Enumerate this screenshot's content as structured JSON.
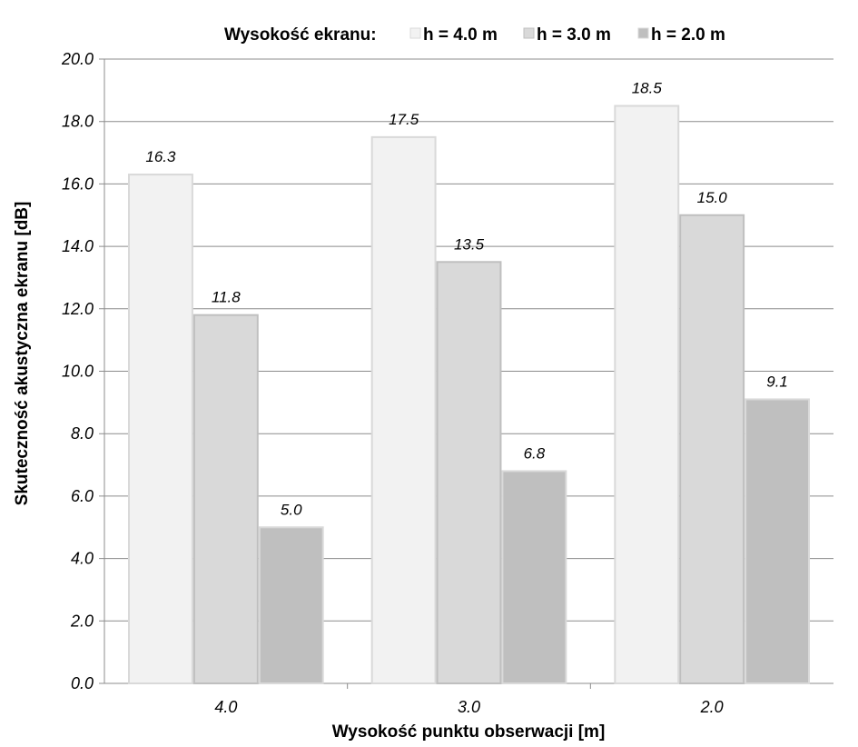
{
  "chart_data": {
    "type": "bar",
    "categories": [
      "4.0",
      "3.0",
      "2.0"
    ],
    "series": [
      {
        "name": "h = 4.0 m",
        "values": [
          16.3,
          17.5,
          18.5
        ],
        "fill": "#f2f2f2",
        "stroke": "#d9d9d9"
      },
      {
        "name": "h = 3.0 m",
        "values": [
          11.8,
          13.5,
          15.0
        ],
        "fill": "#d9d9d9",
        "stroke": "#bfbfbf"
      },
      {
        "name": "h = 2.0 m",
        "values": [
          5.0,
          6.8,
          9.1
        ],
        "fill": "#bfbfbf",
        "stroke": "#d9d9d9"
      }
    ],
    "data_labels": [
      [
        "16.3",
        "17.5",
        "18.5"
      ],
      [
        "11.8",
        "13.5",
        "15.0"
      ],
      [
        "5.0",
        "6.8",
        "9.1"
      ]
    ],
    "legend_title": "Wysokość ekranu:",
    "legend_position": "top",
    "xlabel": "Wysokość punktu obserwacji [m]",
    "ylabel": "Skuteczność akustyczna ekranu [dB]",
    "ylim": [
      0,
      20
    ],
    "yticks": [
      "0.0",
      "2.0",
      "4.0",
      "6.0",
      "8.0",
      "10.0",
      "12.0",
      "14.0",
      "16.0",
      "18.0",
      "20.0"
    ],
    "grid": true
  }
}
